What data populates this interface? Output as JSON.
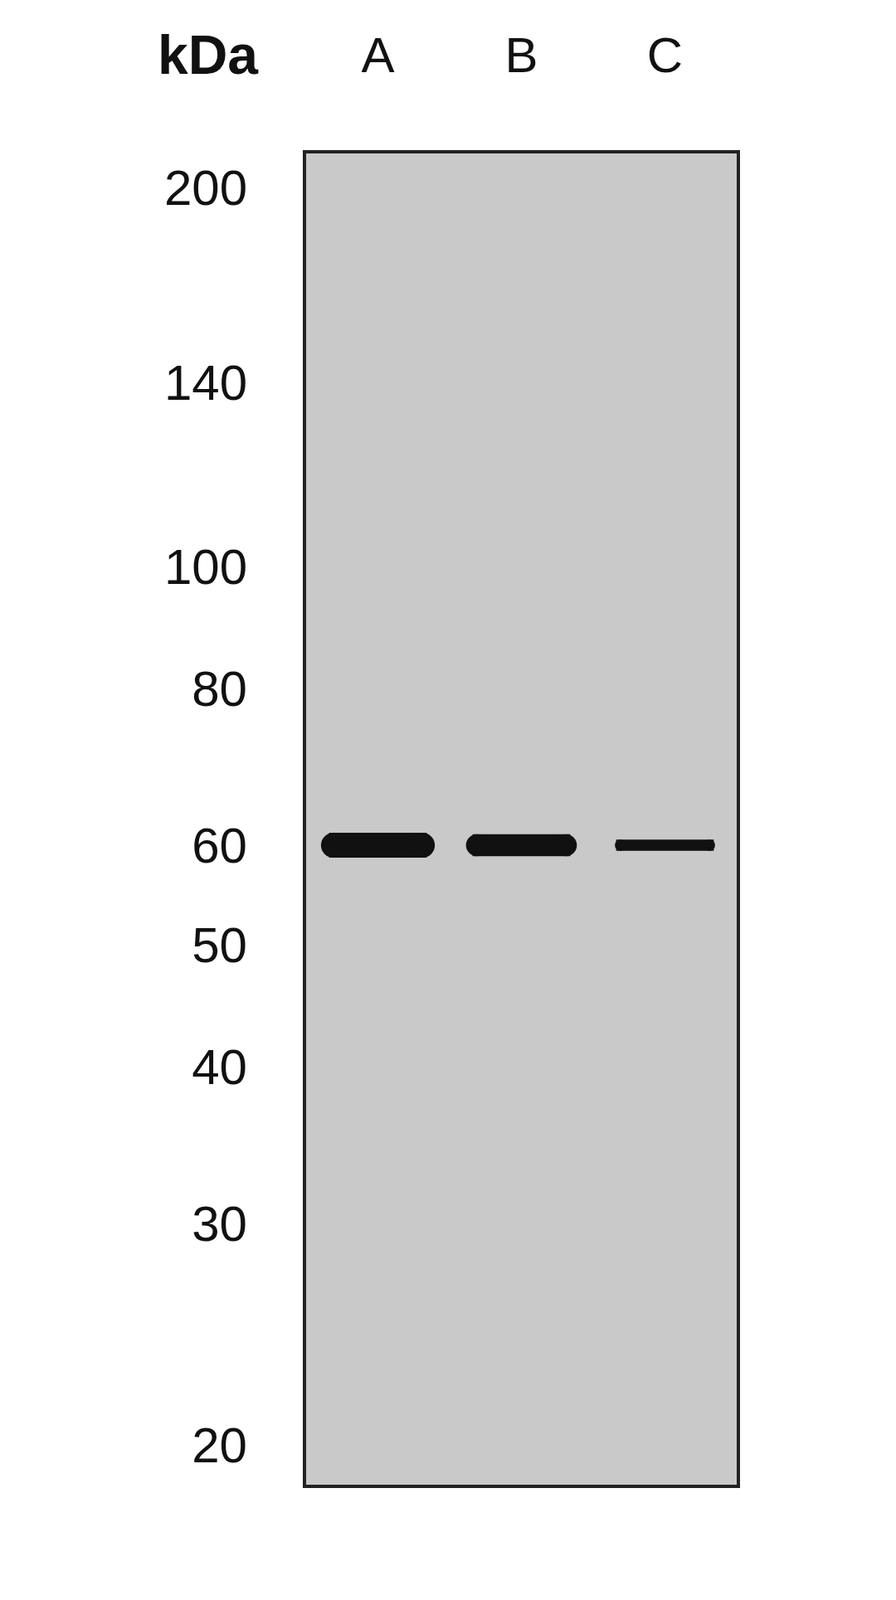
{
  "chart_data": {
    "type": "blot",
    "y_label": "kDa",
    "categories": [
      "A",
      "B",
      "C"
    ],
    "values": [
      60,
      60,
      60
    ],
    "intensity": [
      1.0,
      0.88,
      0.45
    ],
    "color": "#111111",
    "log": "y",
    "ylim": [
      18.6,
      213
    ],
    "yticks": [
      20,
      30,
      40,
      50,
      60,
      80,
      100,
      140,
      200
    ],
    "grid": false
  }
}
